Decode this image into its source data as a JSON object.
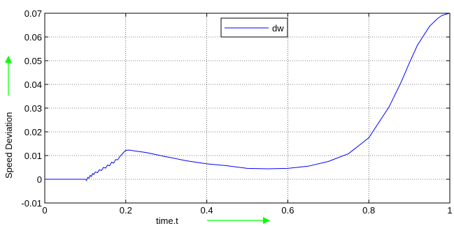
{
  "chart_data": {
    "type": "line",
    "title": "",
    "xlabel": "time.t",
    "ylabel": "Speed Deviation",
    "xlim": [
      0,
      1
    ],
    "ylim": [
      -0.01,
      0.07
    ],
    "grid": true,
    "legend_position": "top-center",
    "x_ticks": [
      "0",
      "0.2",
      "0.4",
      "0.6",
      "0.8",
      "1"
    ],
    "y_ticks": [
      "-0.01",
      "0",
      "0.01",
      "0.02",
      "0.03",
      "0.04",
      "0.05",
      "0.06",
      "0.07"
    ],
    "series": [
      {
        "name": "dw",
        "color": "#0000ff",
        "x": [
          0,
          0.1,
          0.103,
          0.106,
          0.109,
          0.112,
          0.115,
          0.118,
          0.121,
          0.125,
          0.13,
          0.135,
          0.14,
          0.145,
          0.15,
          0.155,
          0.16,
          0.165,
          0.17,
          0.175,
          0.18,
          0.185,
          0.19,
          0.195,
          0.2,
          0.21,
          0.22,
          0.25,
          0.3,
          0.35,
          0.4,
          0.45,
          0.5,
          0.55,
          0.6,
          0.65,
          0.7,
          0.75,
          0.8,
          0.85,
          0.88,
          0.9,
          0.92,
          0.95,
          0.97,
          0.98,
          0.99,
          1.0
        ],
        "y": [
          0,
          0,
          -0.0005,
          0.0008,
          0.0004,
          0.0016,
          0.0012,
          0.0024,
          0.002,
          0.0031,
          0.0028,
          0.004,
          0.0037,
          0.005,
          0.0047,
          0.006,
          0.0057,
          0.0072,
          0.0068,
          0.0083,
          0.0082,
          0.0095,
          0.0104,
          0.0114,
          0.0122,
          0.0123,
          0.012,
          0.0113,
          0.0095,
          0.0078,
          0.0065,
          0.0057,
          0.0046,
          0.0044,
          0.0046,
          0.0055,
          0.0075,
          0.0108,
          0.0175,
          0.0305,
          0.041,
          0.049,
          0.0565,
          0.0645,
          0.0678,
          0.069,
          0.0696,
          0.07
        ]
      }
    ]
  },
  "arrows": {
    "color": "#00ff00"
  }
}
